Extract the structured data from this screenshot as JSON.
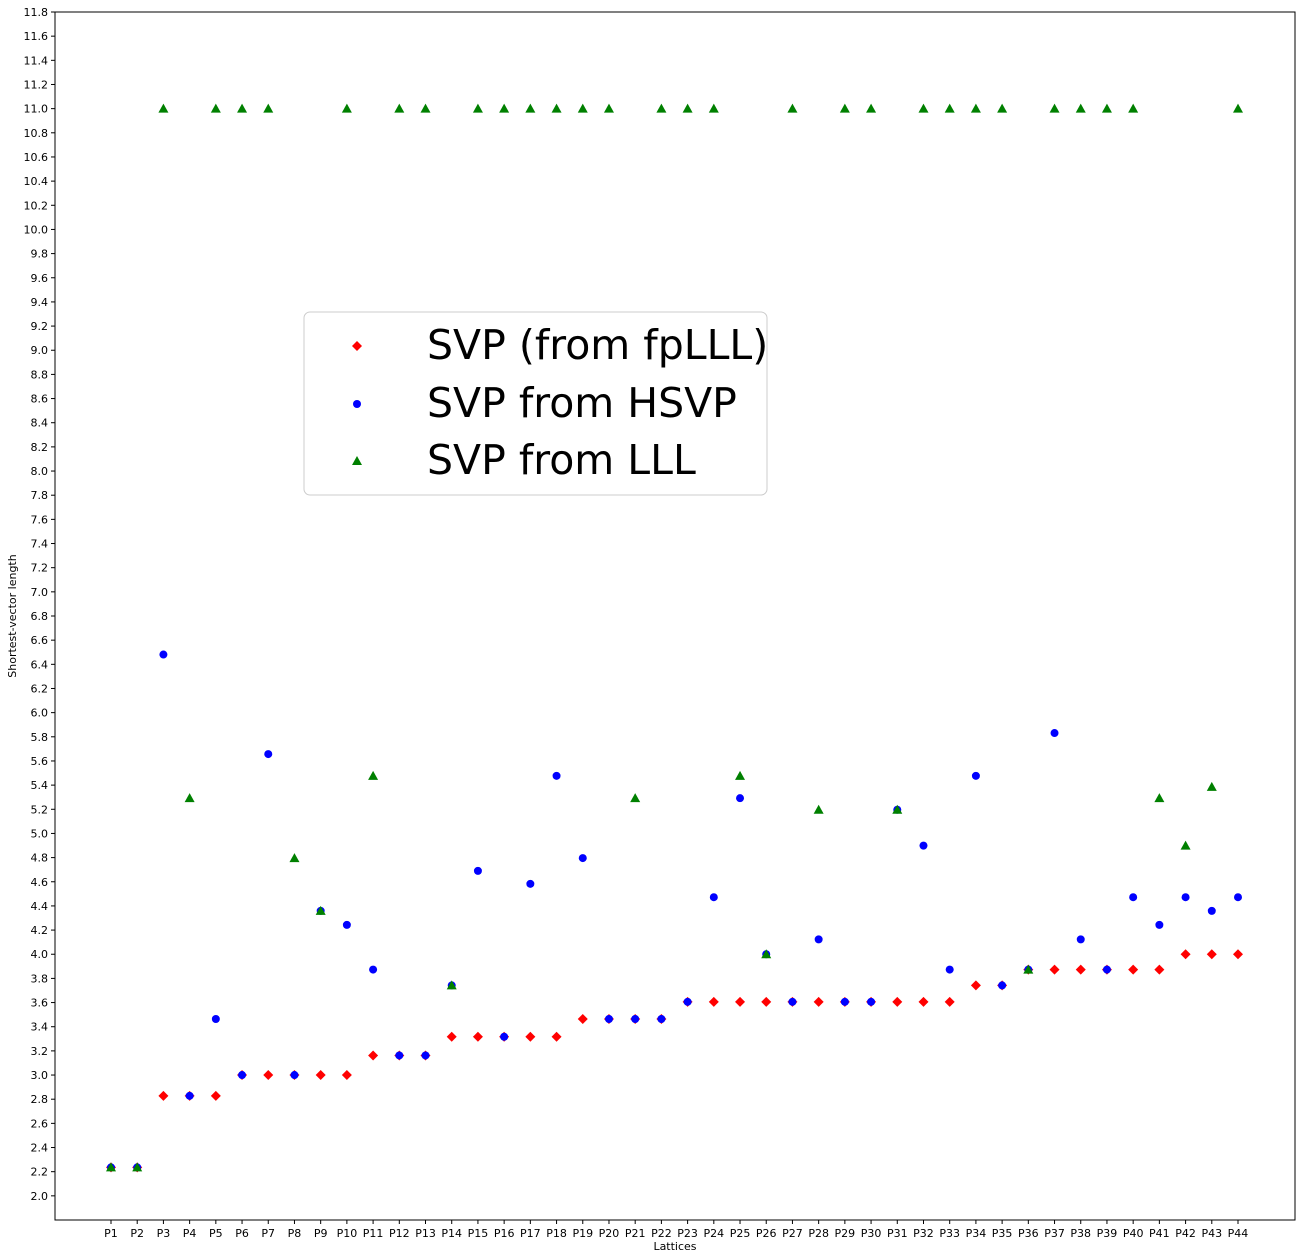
{
  "chart_data": {
    "type": "scatter",
    "xlabel": "Lattices",
    "ylabel": "Shortest-vector length",
    "ylim": [
      1.8,
      11.8
    ],
    "ytick_step": 0.2,
    "yticks": [
      "2.0",
      "2.2",
      "2.4",
      "2.6",
      "2.8",
      "3.0",
      "3.2",
      "3.4",
      "3.6",
      "3.8",
      "4.0",
      "4.2",
      "4.4",
      "4.6",
      "4.8",
      "5.0",
      "5.2",
      "5.4",
      "5.6",
      "5.8",
      "6.0",
      "6.2",
      "6.4",
      "6.6",
      "6.8",
      "7.0",
      "7.2",
      "7.4",
      "7.6",
      "7.8",
      "8.0",
      "8.2",
      "8.4",
      "8.6",
      "8.8",
      "9.0",
      "9.2",
      "9.4",
      "9.6",
      "9.8",
      "10.0",
      "10.2",
      "10.4",
      "10.6",
      "10.8",
      "11.0",
      "11.2",
      "11.4",
      "11.6",
      "11.8"
    ],
    "categories": [
      "P1",
      "P2",
      "P3",
      "P4",
      "P5",
      "P6",
      "P7",
      "P8",
      "P9",
      "P10",
      "P11",
      "P12",
      "P13",
      "P14",
      "P15",
      "P16",
      "P17",
      "P18",
      "P19",
      "P20",
      "P21",
      "P22",
      "P23",
      "P24",
      "P25",
      "P26",
      "P27",
      "P28",
      "P29",
      "P30",
      "P31",
      "P32",
      "P33",
      "P34",
      "P35",
      "P36",
      "P37",
      "P38",
      "P39",
      "P40",
      "P41",
      "P42",
      "P43",
      "P44"
    ],
    "legend_position": "center-left",
    "grid": false,
    "series": [
      {
        "name": "SVP (from fpLLL)",
        "marker": "diamond",
        "color": "#ff0000",
        "values": [
          2.236,
          2.236,
          2.828,
          2.828,
          2.828,
          3.0,
          3.0,
          3.0,
          3.0,
          3.0,
          3.162,
          3.162,
          3.162,
          3.317,
          3.317,
          3.317,
          3.317,
          3.317,
          3.464,
          3.464,
          3.464,
          3.464,
          3.606,
          3.606,
          3.606,
          3.606,
          3.606,
          3.606,
          3.606,
          3.606,
          3.606,
          3.606,
          3.606,
          3.742,
          3.742,
          3.873,
          3.873,
          3.873,
          3.873,
          3.873,
          3.873,
          4.0,
          4.0,
          4.0
        ]
      },
      {
        "name": "SVP from HSVP",
        "marker": "circle",
        "color": "#0000ff",
        "values": [
          2.236,
          2.236,
          6.481,
          2.828,
          3.464,
          3.0,
          5.657,
          3.0,
          4.359,
          4.243,
          3.873,
          3.162,
          3.162,
          3.742,
          4.69,
          3.317,
          4.583,
          5.477,
          4.796,
          3.464,
          3.464,
          3.464,
          3.606,
          4.472,
          5.292,
          4.0,
          3.606,
          4.123,
          3.606,
          3.606,
          5.196,
          4.899,
          3.873,
          5.477,
          3.742,
          3.873,
          5.831,
          4.123,
          3.873,
          4.472,
          4.243,
          4.472,
          4.359,
          4.472
        ]
      },
      {
        "name": "SVP from LLL",
        "marker": "triangle",
        "color": "#008000",
        "values": [
          2.236,
          2.236,
          11.0,
          5.292,
          11.0,
          11.0,
          11.0,
          4.796,
          4.359,
          11.0,
          5.477,
          11.0,
          11.0,
          3.742,
          11.0,
          11.0,
          11.0,
          11.0,
          11.0,
          11.0,
          5.292,
          11.0,
          11.0,
          11.0,
          5.477,
          4.0,
          11.0,
          5.196,
          11.0,
          11.0,
          5.196,
          11.0,
          11.0,
          11.0,
          11.0,
          3.873,
          11.0,
          11.0,
          11.0,
          11.0,
          5.292,
          4.899,
          5.385,
          11.0
        ]
      }
    ]
  }
}
